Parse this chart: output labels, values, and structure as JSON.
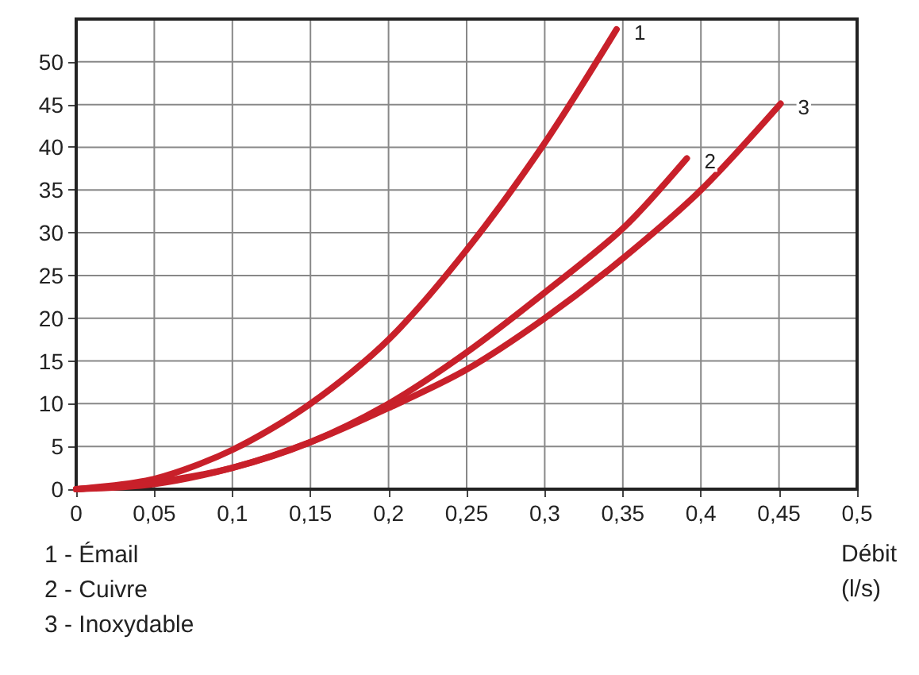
{
  "chart_data": {
    "type": "line",
    "xlabel": "Débit\n(l/s)",
    "marker": "none",
    "line_style": "solid",
    "grid": true,
    "legend": false,
    "xlim": [
      0,
      0.5
    ],
    "ylim": [
      0,
      55
    ],
    "xticks": [
      0,
      {
        "value": 0.05,
        "label": "0,05"
      },
      {
        "value": 0.1,
        "label": "0,1"
      },
      {
        "value": 0.15,
        "label": "0,15"
      },
      {
        "value": 0.2,
        "label": "0,2"
      },
      {
        "value": 0.25,
        "label": "0,25"
      },
      {
        "value": 0.3,
        "label": "0,3"
      },
      {
        "value": 0.35,
        "label": "0,35"
      },
      {
        "value": 0.4,
        "label": "0,4"
      },
      {
        "value": 0.45,
        "label": "0,45"
      },
      {
        "value": 0.5,
        "label": "0,5"
      }
    ],
    "yticks": [
      0,
      5,
      10,
      15,
      20,
      25,
      30,
      35,
      40,
      45,
      50
    ],
    "series": [
      {
        "name": "1",
        "color": "#c8202a",
        "x": [
          0,
          0.05,
          0.1,
          0.15,
          0.2,
          0.25,
          0.3,
          0.346
        ],
        "values": [
          0,
          1.2,
          4.6,
          10,
          17.5,
          28,
          40.5,
          53.8
        ]
      },
      {
        "name": "2",
        "color": "#c8202a",
        "x": [
          0,
          0.05,
          0.1,
          0.15,
          0.2,
          0.25,
          0.3,
          0.35,
          0.391
        ],
        "values": [
          0,
          0.8,
          2.5,
          5.5,
          10,
          16,
          23,
          30.5,
          38.7
        ]
      },
      {
        "name": "3",
        "color": "#c8202a",
        "x": [
          0,
          0.05,
          0.1,
          0.15,
          0.2,
          0.25,
          0.3,
          0.35,
          0.4,
          0.451
        ],
        "values": [
          0,
          0.6,
          2.5,
          5.5,
          9.5,
          14,
          20,
          27,
          35,
          45.1
        ]
      }
    ],
    "annotations": [
      "1 - Émail",
      "2 - Cuivre",
      "3 - Inoxydable"
    ]
  }
}
